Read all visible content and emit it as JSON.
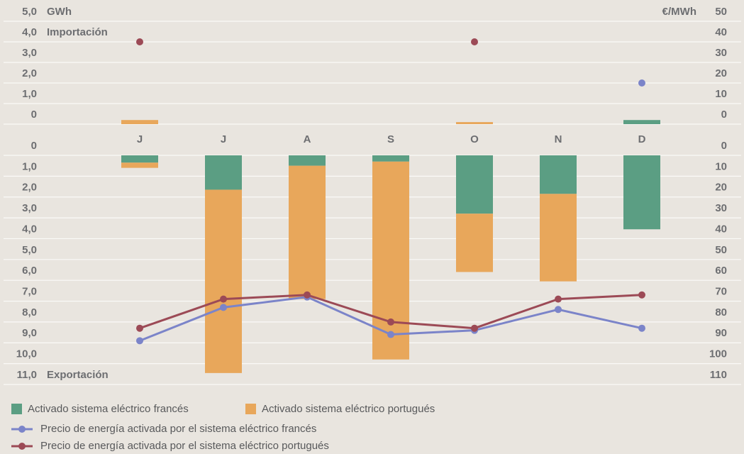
{
  "chart_data": [
    {
      "type": "bar",
      "annotation": "Importación",
      "y_label": "GWh",
      "y2_label": "€/MWh",
      "ylim": [
        0,
        5
      ],
      "yticks": [
        0,
        {
          "value": 1,
          "label": "1,0"
        },
        {
          "value": 2,
          "label": "2,0"
        },
        {
          "value": 3,
          "label": "3,0"
        },
        {
          "value": 4,
          "label": "4,0"
        },
        {
          "value": 5,
          "label": "5,0"
        }
      ],
      "y2lim": [
        0,
        50
      ],
      "y2ticks": [
        0,
        10,
        20,
        30,
        40,
        50
      ],
      "grid": true,
      "series": [
        {
          "type": "bar",
          "color": "#5b9e83",
          "values": [
            0,
            0,
            0,
            0,
            0,
            0,
            0.2
          ]
        },
        {
          "type": "bar",
          "color": "#e8a75b",
          "values": [
            0.2,
            0,
            0,
            0,
            0.1,
            0,
            0
          ]
        },
        {
          "type": "line",
          "axis": "y2",
          "color": "#7b84c9",
          "values": [
            null,
            null,
            null,
            null,
            null,
            null,
            20
          ]
        },
        {
          "type": "line",
          "axis": "y2",
          "color": "#9c4a56",
          "values": [
            40,
            null,
            null,
            null,
            40,
            null,
            null
          ]
        }
      ]
    },
    {
      "type": "bar",
      "annotation": "Exportación",
      "inverted": true,
      "categories": [
        "J",
        "J",
        "A",
        "S",
        "O",
        "N",
        "D"
      ],
      "ylim": [
        0,
        11
      ],
      "yticks": [
        0,
        {
          "value": 1,
          "label": "1,0"
        },
        {
          "value": 2,
          "label": "2,0"
        },
        {
          "value": 3,
          "label": "3,0"
        },
        {
          "value": 4,
          "label": "4,0"
        },
        {
          "value": 5,
          "label": "5,0"
        },
        {
          "value": 6,
          "label": "6,0"
        },
        {
          "value": 7,
          "label": "7,0"
        },
        {
          "value": 8,
          "label": "8,0"
        },
        {
          "value": 9,
          "label": "9,0"
        },
        {
          "value": 10,
          "label": "10,0"
        },
        {
          "value": 11,
          "label": "11,0"
        }
      ],
      "y2lim": [
        0,
        110
      ],
      "y2ticks": [
        0,
        10,
        20,
        30,
        40,
        50,
        60,
        70,
        80,
        90,
        100,
        110
      ],
      "grid": true,
      "series": [
        {
          "type": "bar",
          "name": "Activado sistema eléctrico francés",
          "color": "#5b9e83",
          "values": [
            0.35,
            1.65,
            0.5,
            0.3,
            2.8,
            1.85,
            3.55
          ]
        },
        {
          "type": "bar",
          "name": "Activado sistema eléctrico portugués",
          "color": "#e8a75b",
          "values": [
            0.25,
            8.8,
            6.4,
            9.5,
            2.8,
            4.2,
            0
          ]
        },
        {
          "type": "line",
          "axis": "y2",
          "name": "Precio de energía activada por el sistema eléctrico francés",
          "color": "#7b84c9",
          "values": [
            89,
            73,
            68,
            86,
            84,
            74,
            83
          ]
        },
        {
          "type": "line",
          "axis": "y2",
          "name": "Precio de energía activada por el sistema eléctrico portugués",
          "color": "#9c4a56",
          "values": [
            83,
            69,
            67,
            80,
            83,
            69,
            67
          ]
        }
      ]
    }
  ]
}
